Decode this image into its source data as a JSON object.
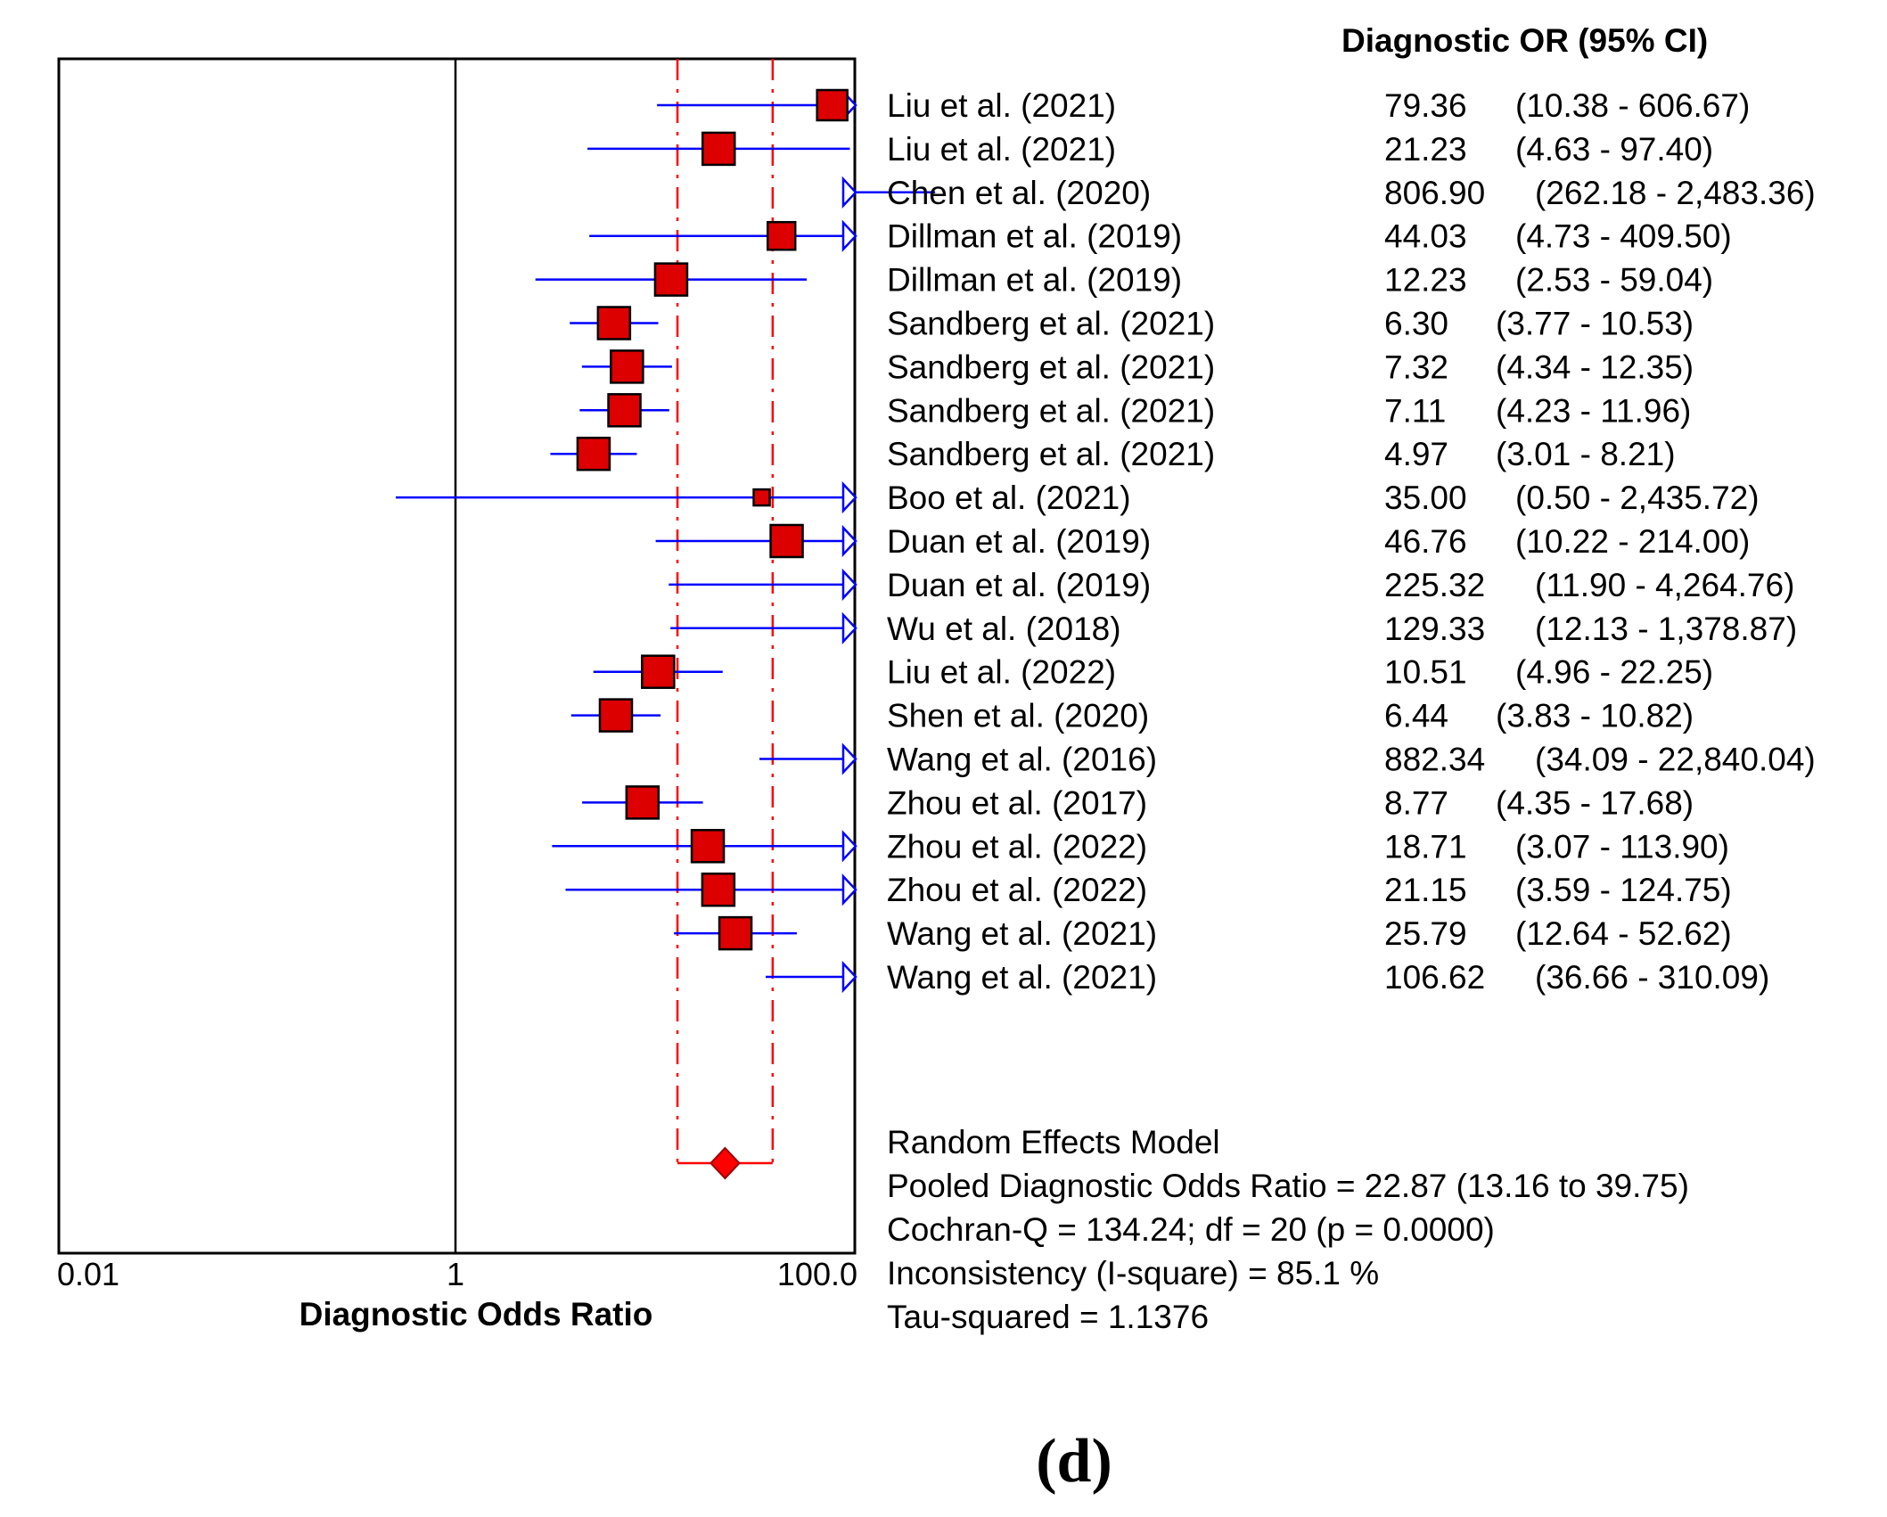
{
  "chart_data": {
    "type": "forest",
    "column_header": "Diagnostic OR (95% CI)",
    "xlabel": "Diagnostic Odds Ratio",
    "xscale": "log",
    "xlim": [
      0.01,
      100
    ],
    "xticks": [
      "0.01",
      "1",
      "100.0"
    ],
    "studies": [
      {
        "label": "Liu et al. (2021)",
        "or": 79.36,
        "lo": 10.38,
        "hi": 606.67,
        "or_text": "79.36",
        "ci_text": "(10.38 - 606.67)"
      },
      {
        "label": "Liu et al. (2021)",
        "or": 21.23,
        "lo": 4.63,
        "hi": 97.4,
        "or_text": "21.23",
        "ci_text": "(4.63 - 97.40)"
      },
      {
        "label": "Chen et al. (2020)",
        "or": 806.9,
        "lo": 262.18,
        "hi": 2483.36,
        "or_text": "806.90",
        "ci_text": "(262.18 - 2,483.36)"
      },
      {
        "label": "Dillman et al. (2019)",
        "or": 44.03,
        "lo": 4.73,
        "hi": 409.5,
        "or_text": "44.03",
        "ci_text": "(4.73 - 409.50)"
      },
      {
        "label": "Dillman et al. (2019)",
        "or": 12.23,
        "lo": 2.53,
        "hi": 59.04,
        "or_text": "12.23",
        "ci_text": "(2.53 - 59.04)"
      },
      {
        "label": "Sandberg et al. (2021)",
        "or": 6.3,
        "lo": 3.77,
        "hi": 10.53,
        "or_text": "6.30",
        "ci_text": "(3.77 - 10.53)"
      },
      {
        "label": "Sandberg et al. (2021)",
        "or": 7.32,
        "lo": 4.34,
        "hi": 12.35,
        "or_text": "7.32",
        "ci_text": "(4.34 - 12.35)"
      },
      {
        "label": "Sandberg et al. (2021)",
        "or": 7.11,
        "lo": 4.23,
        "hi": 11.96,
        "or_text": "7.11",
        "ci_text": "(4.23 - 11.96)"
      },
      {
        "label": "Sandberg et al. (2021)",
        "or": 4.97,
        "lo": 3.01,
        "hi": 8.21,
        "or_text": "4.97",
        "ci_text": "(3.01 - 8.21)"
      },
      {
        "label": "Boo et al. (2021)",
        "or": 35.0,
        "lo": 0.5,
        "hi": 2435.72,
        "or_text": "35.00",
        "ci_text": "(0.50 - 2,435.72)"
      },
      {
        "label": "Duan et al. (2019)",
        "or": 46.76,
        "lo": 10.22,
        "hi": 214.0,
        "or_text": "46.76",
        "ci_text": "(10.22 - 214.00)"
      },
      {
        "label": "Duan et al. (2019)",
        "or": 225.32,
        "lo": 11.9,
        "hi": 4264.76,
        "or_text": "225.32",
        "ci_text": "(11.90 - 4,264.76)"
      },
      {
        "label": "Wu et al. (2018)",
        "or": 129.33,
        "lo": 12.13,
        "hi": 1378.87,
        "or_text": "129.33",
        "ci_text": "(12.13 - 1,378.87)"
      },
      {
        "label": "Liu et al. (2022)",
        "or": 10.51,
        "lo": 4.96,
        "hi": 22.25,
        "or_text": "10.51",
        "ci_text": "(4.96 - 22.25)"
      },
      {
        "label": "Shen et al. (2020)",
        "or": 6.44,
        "lo": 3.83,
        "hi": 10.82,
        "or_text": "6.44",
        "ci_text": "(3.83 - 10.82)"
      },
      {
        "label": "Wang et al. (2016)",
        "or": 882.34,
        "lo": 34.09,
        "hi": 22840.04,
        "or_text": "882.34",
        "ci_text": "(34.09 - 22,840.04)"
      },
      {
        "label": "Zhou et al. (2017)",
        "or": 8.77,
        "lo": 4.35,
        "hi": 17.68,
        "or_text": "8.77",
        "ci_text": "(4.35 - 17.68)"
      },
      {
        "label": "Zhou et al. (2022)",
        "or": 18.71,
        "lo": 3.07,
        "hi": 113.9,
        "or_text": "18.71",
        "ci_text": "(3.07 - 113.90)"
      },
      {
        "label": "Zhou et al. (2022)",
        "or": 21.15,
        "lo": 3.59,
        "hi": 124.75,
        "or_text": "21.15",
        "ci_text": "(3.59 - 124.75)"
      },
      {
        "label": "Wang et al. (2021)",
        "or": 25.79,
        "lo": 12.64,
        "hi": 52.62,
        "or_text": "25.79",
        "ci_text": "(12.64 - 52.62)"
      },
      {
        "label": "Wang et al. (2021)",
        "or": 106.62,
        "lo": 36.66,
        "hi": 310.09,
        "or_text": "106.62",
        "ci_text": "(36.66 - 310.09)"
      }
    ],
    "pooled": {
      "or": 22.87,
      "lo": 13.16,
      "hi": 39.75
    },
    "summary_lines": [
      "Random Effects Model",
      "Pooled Diagnostic Odds Ratio = 22.87 (13.16 to 39.75)",
      "Cochran-Q = 134.24; df =  20 (p = 0.0000)",
      "Inconsistency (I-square) = 85.1 %",
      "Tau-squared = 1.1376"
    ],
    "colors": {
      "ci_line": "#0000ff",
      "marker_fill": "#dd0000",
      "pooled": "#ff0000",
      "axis": "#000000"
    }
  },
  "panel_label": "(d)"
}
